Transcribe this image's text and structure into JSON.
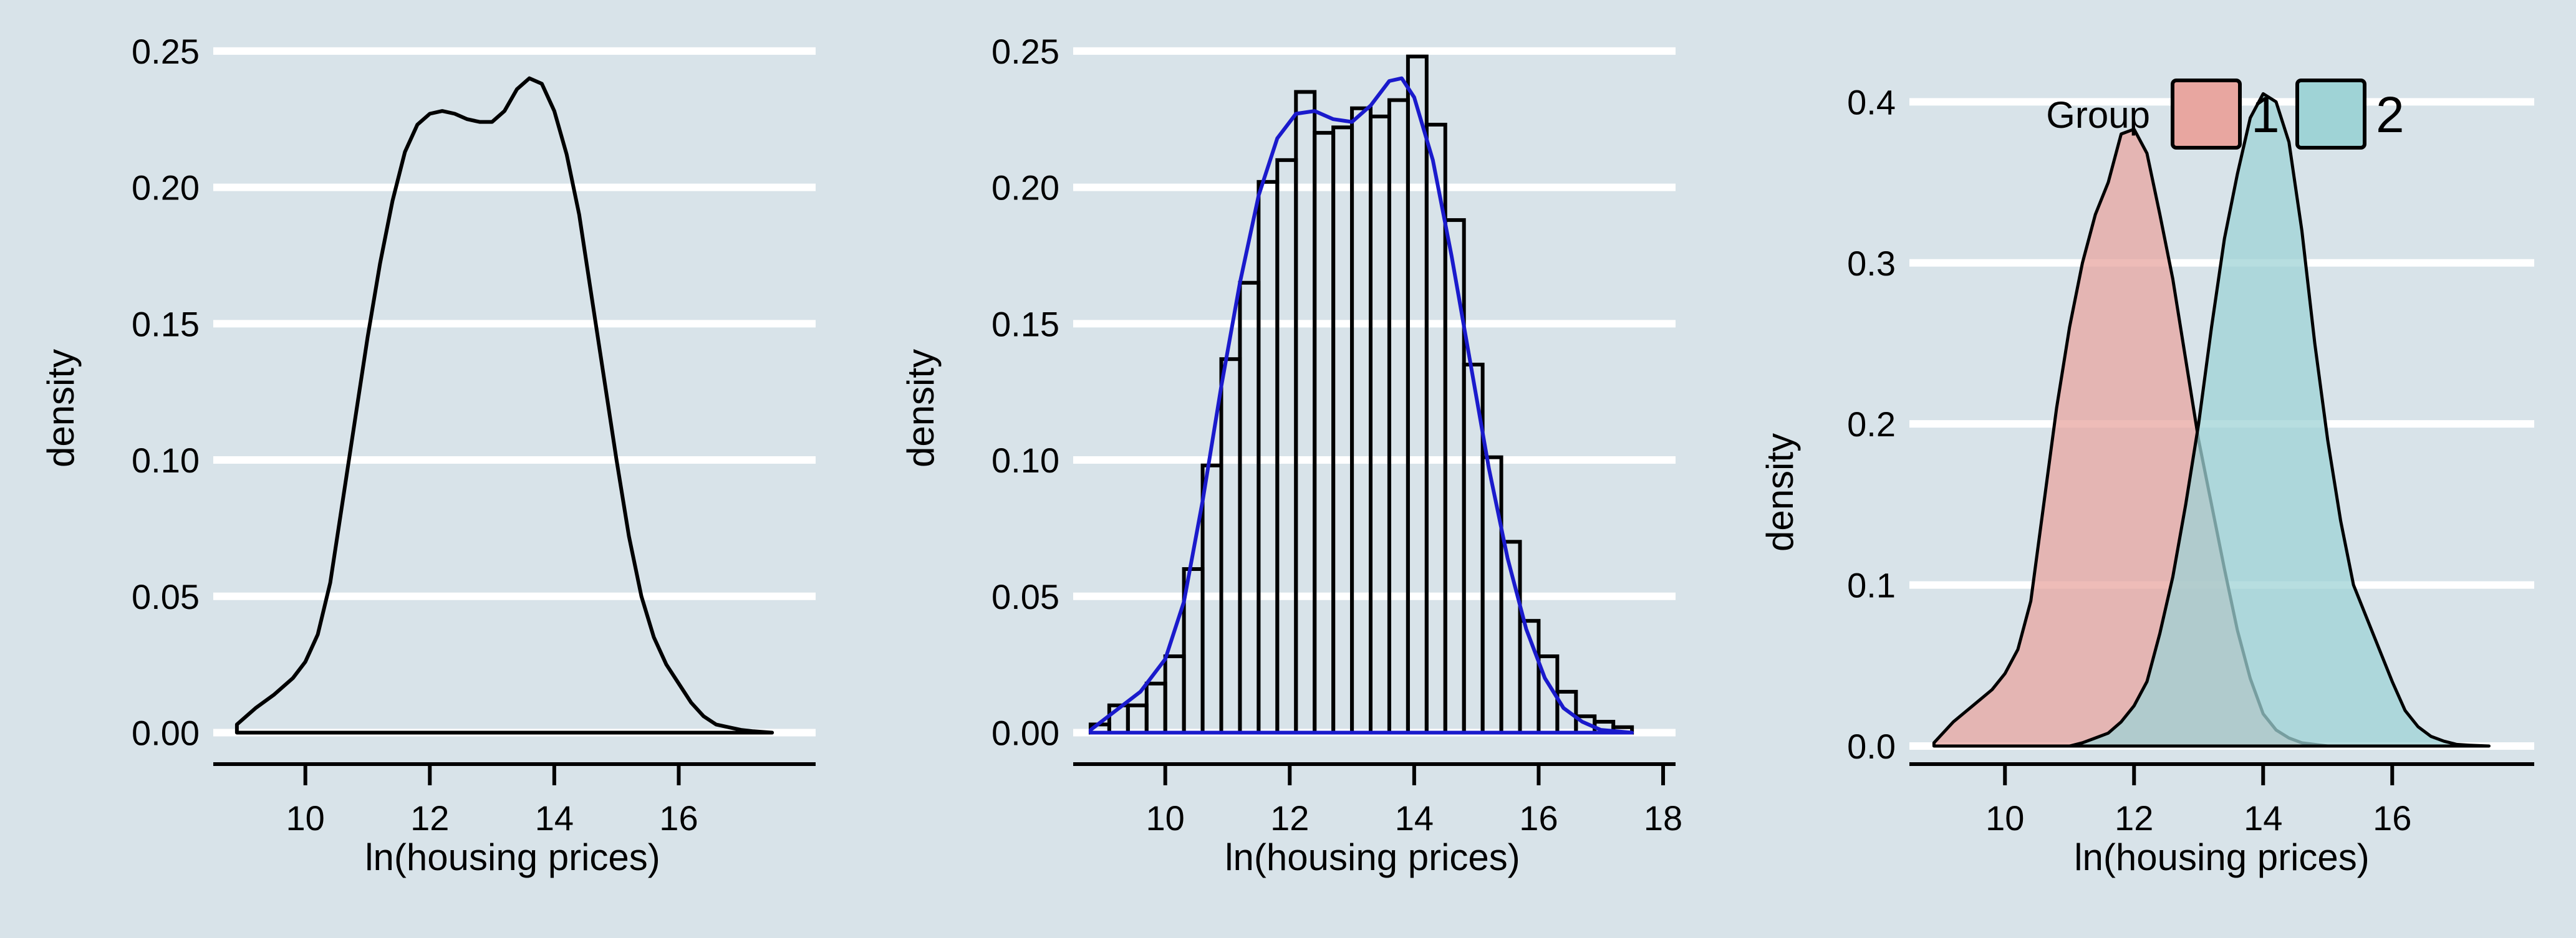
{
  "chart_data": [
    {
      "type": "line",
      "xlabel": "ln(housing prices)",
      "ylabel": "density",
      "xlim": [
        8.5,
        18.2
      ],
      "ylim": [
        -0.012,
        0.255
      ],
      "xticks": [
        "10",
        "12",
        "14",
        "16"
      ],
      "yticks": [
        "0.00",
        "0.05",
        "0.10",
        "0.15",
        "0.20",
        "0.25"
      ],
      "grid": "horizontal",
      "series": [
        {
          "x": [
            8.9,
            9.2,
            9.5,
            9.8,
            10.0,
            10.2,
            10.4,
            10.6,
            10.8,
            11.0,
            11.2,
            11.4,
            11.6,
            11.8,
            12.0,
            12.2,
            12.4,
            12.6,
            12.8,
            13.0,
            13.2,
            13.4,
            13.6,
            13.8,
            14.0,
            14.2,
            14.4,
            14.6,
            14.8,
            15.0,
            15.2,
            15.4,
            15.6,
            15.8,
            16.0,
            16.2,
            16.4,
            16.6,
            16.8,
            17.0,
            17.2,
            17.5
          ],
          "values": [
            0.003,
            0.009,
            0.014,
            0.02,
            0.026,
            0.036,
            0.055,
            0.085,
            0.115,
            0.145,
            0.172,
            0.195,
            0.213,
            0.223,
            0.227,
            0.228,
            0.227,
            0.225,
            0.224,
            0.224,
            0.228,
            0.236,
            0.24,
            0.238,
            0.228,
            0.212,
            0.19,
            0.16,
            0.13,
            0.1,
            0.072,
            0.05,
            0.035,
            0.025,
            0.018,
            0.011,
            0.006,
            0.003,
            0.002,
            0.001,
            0.0005,
            0.0
          ]
        }
      ]
    },
    {
      "type": "bar",
      "xlabel": "ln(housing prices)",
      "ylabel": "density",
      "xlim": [
        8.5,
        18.2
      ],
      "ylim": [
        -0.012,
        0.255
      ],
      "xticks": [
        "10",
        "12",
        "14",
        "16",
        "18"
      ],
      "yticks": [
        "0.00",
        "0.05",
        "0.10",
        "0.15",
        "0.20",
        "0.25"
      ],
      "grid": "horizontal",
      "bin_width": 0.3,
      "bin_starts": [
        8.8,
        9.1,
        9.4,
        9.7,
        10.0,
        10.3,
        10.6,
        10.9,
        11.2,
        11.5,
        11.8,
        12.1,
        12.4,
        12.7,
        13.0,
        13.3,
        13.6,
        13.9,
        14.2,
        14.5,
        14.8,
        15.1,
        15.4,
        15.7,
        16.0,
        16.3,
        16.6,
        16.9,
        17.2
      ],
      "values": [
        0.003,
        0.01,
        0.01,
        0.018,
        0.028,
        0.06,
        0.098,
        0.137,
        0.165,
        0.202,
        0.21,
        0.235,
        0.22,
        0.222,
        0.229,
        0.226,
        0.232,
        0.248,
        0.223,
        0.188,
        0.135,
        0.101,
        0.07,
        0.041,
        0.028,
        0.015,
        0.006,
        0.004,
        0.002
      ],
      "series": [
        {
          "x": [
            8.8,
            9.2,
            9.6,
            10.0,
            10.3,
            10.6,
            10.9,
            11.2,
            11.5,
            11.8,
            12.1,
            12.4,
            12.7,
            13.0,
            13.3,
            13.6,
            13.8,
            14.0,
            14.3,
            14.6,
            14.9,
            15.2,
            15.5,
            15.8,
            16.1,
            16.4,
            16.7,
            17.0,
            17.5
          ],
          "values": [
            0.001,
            0.008,
            0.015,
            0.027,
            0.048,
            0.085,
            0.127,
            0.165,
            0.197,
            0.218,
            0.227,
            0.228,
            0.225,
            0.224,
            0.23,
            0.239,
            0.24,
            0.233,
            0.21,
            0.175,
            0.136,
            0.097,
            0.064,
            0.038,
            0.02,
            0.009,
            0.004,
            0.001,
            0.0
          ]
        }
      ],
      "colors": {
        "curve": "#1a1acc",
        "bars": "#000000"
      }
    },
    {
      "type": "area",
      "xlabel": "ln(housing prices)",
      "ylabel": "density",
      "xlim": [
        8.5,
        18.2
      ],
      "ylim": [
        -0.012,
        0.44
      ],
      "xticks": [
        "10",
        "12",
        "14",
        "16"
      ],
      "yticks": [
        "0.0",
        "0.1",
        "0.2",
        "0.3",
        "0.4"
      ],
      "grid": "horizontal",
      "legend": {
        "title": "Group",
        "position": "top",
        "entries": [
          "1",
          "2"
        ]
      },
      "series": [
        {
          "name": "1",
          "color": "#e8a6a0",
          "x": [
            8.9,
            9.2,
            9.5,
            9.8,
            10.0,
            10.2,
            10.4,
            10.6,
            10.8,
            11.0,
            11.2,
            11.4,
            11.6,
            11.8,
            12.0,
            12.2,
            12.4,
            12.6,
            12.8,
            13.0,
            13.2,
            13.4,
            13.6,
            13.8,
            14.0,
            14.2,
            14.4,
            14.6,
            14.8,
            15.0
          ],
          "values": [
            0.002,
            0.015,
            0.025,
            0.035,
            0.045,
            0.06,
            0.09,
            0.15,
            0.21,
            0.26,
            0.3,
            0.33,
            0.35,
            0.38,
            0.383,
            0.368,
            0.33,
            0.29,
            0.24,
            0.19,
            0.15,
            0.11,
            0.072,
            0.042,
            0.02,
            0.01,
            0.005,
            0.002,
            0.001,
            0.0
          ]
        },
        {
          "name": "2",
          "color": "#9fd3d6",
          "x": [
            11.0,
            11.2,
            11.4,
            11.6,
            11.8,
            12.0,
            12.2,
            12.4,
            12.6,
            12.8,
            13.0,
            13.2,
            13.4,
            13.6,
            13.8,
            14.0,
            14.2,
            14.4,
            14.6,
            14.8,
            15.0,
            15.2,
            15.4,
            15.6,
            15.8,
            16.0,
            16.2,
            16.4,
            16.6,
            16.8,
            17.0,
            17.2,
            17.5
          ],
          "values": [
            0.0,
            0.002,
            0.005,
            0.008,
            0.015,
            0.025,
            0.04,
            0.07,
            0.105,
            0.15,
            0.2,
            0.26,
            0.315,
            0.355,
            0.39,
            0.405,
            0.4,
            0.375,
            0.32,
            0.25,
            0.19,
            0.14,
            0.1,
            0.08,
            0.06,
            0.04,
            0.022,
            0.012,
            0.006,
            0.003,
            0.001,
            0.0005,
            0.0
          ]
        }
      ]
    }
  ]
}
